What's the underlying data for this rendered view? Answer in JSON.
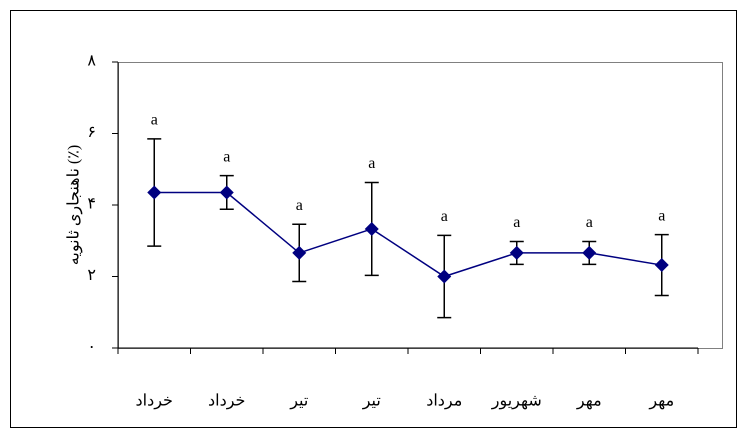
{
  "chart_data": {
    "type": "line",
    "y_label": "ناهنجاری ثانویه (٪)",
    "categories": [
      "خرداد",
      "خرداد",
      "تیر",
      "تیر",
      "مرداد",
      "شهریور",
      "مهر",
      "مهر"
    ],
    "series": [
      {
        "color": "#000080",
        "values": [
          4.35,
          4.35,
          2.66,
          3.33,
          2.0,
          2.66,
          2.66,
          2.32
        ],
        "errors": [
          1.5,
          0.47,
          0.8,
          1.3,
          1.15,
          0.32,
          0.32,
          0.85
        ],
        "letters": [
          "a",
          "a",
          "a",
          "a",
          "a",
          "a",
          "a",
          "a"
        ]
      }
    ],
    "ylim": [
      0,
      8
    ],
    "yticks": [
      {
        "value": 0,
        "label": "۰"
      },
      {
        "value": 2,
        "label": "۲"
      },
      {
        "value": 4,
        "label": "۴"
      },
      {
        "value": 6,
        "label": "۶"
      },
      {
        "value": 8,
        "label": "۸"
      }
    ],
    "grid": false
  }
}
